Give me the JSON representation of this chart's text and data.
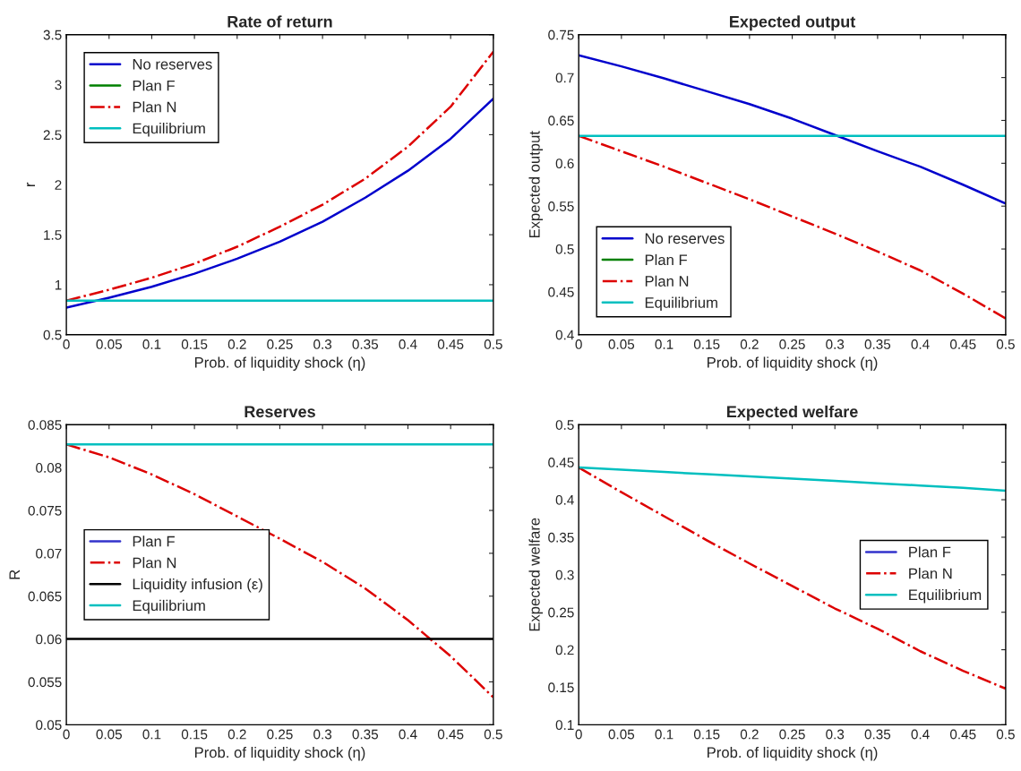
{
  "chart_data": [
    {
      "type": "line",
      "title": "Rate of return",
      "xlabel": "Prob. of liquidity shock (η)",
      "ylabel": "r",
      "x": [
        0,
        0.05,
        0.1,
        0.15,
        0.2,
        0.25,
        0.3,
        0.35,
        0.4,
        0.45,
        0.5
      ],
      "xlim": [
        0,
        0.5
      ],
      "xticks": [
        0,
        0.05,
        0.1,
        0.15,
        0.2,
        0.25,
        0.3,
        0.35,
        0.4,
        0.45,
        0.5
      ],
      "ylim": [
        0.5,
        3.5
      ],
      "yticks": [
        0.5,
        1,
        1.5,
        2,
        2.5,
        3,
        3.5
      ],
      "grid": false,
      "legend": "top left",
      "marker": "none",
      "series": [
        {
          "name": "No reserves",
          "color": "#0000cc",
          "line_style": "solid",
          "values": [
            0.77,
            0.87,
            0.98,
            1.11,
            1.26,
            1.43,
            1.63,
            1.87,
            2.14,
            2.46,
            2.86
          ]
        },
        {
          "name": "Plan F",
          "color": "#008000",
          "line_style": "solid",
          "values": [
            null,
            null,
            null,
            null,
            null,
            null,
            null,
            null,
            null,
            null,
            null
          ]
        },
        {
          "name": "Plan N",
          "color": "#dd0000",
          "line_style": "dashdot",
          "values": [
            0.84,
            0.95,
            1.07,
            1.21,
            1.38,
            1.58,
            1.8,
            2.06,
            2.38,
            2.78,
            3.33
          ]
        },
        {
          "name": "Equilibrium",
          "color": "#00bfbf",
          "line_style": "solid",
          "values": [
            0.84,
            0.84,
            0.84,
            0.84,
            0.84,
            0.84,
            0.84,
            0.84,
            0.84,
            0.84,
            0.84
          ]
        }
      ]
    },
    {
      "type": "line",
      "title": "Expected output",
      "xlabel": "Prob. of liquidity shock (η)",
      "ylabel": "Expected output",
      "x": [
        0,
        0.05,
        0.1,
        0.15,
        0.2,
        0.25,
        0.3,
        0.35,
        0.4,
        0.45,
        0.5
      ],
      "xlim": [
        0,
        0.5
      ],
      "xticks": [
        0,
        0.05,
        0.1,
        0.15,
        0.2,
        0.25,
        0.3,
        0.35,
        0.4,
        0.45,
        0.5
      ],
      "ylim": [
        0.4,
        0.75
      ],
      "yticks": [
        0.4,
        0.45,
        0.5,
        0.55,
        0.6,
        0.65,
        0.7,
        0.75
      ],
      "grid": false,
      "legend": "lower left",
      "marker": "none",
      "series": [
        {
          "name": "No reserves",
          "color": "#0000cc",
          "line_style": "solid",
          "values": [
            0.726,
            0.713,
            0.699,
            0.684,
            0.669,
            0.652,
            0.633,
            0.614,
            0.596,
            0.575,
            0.553
          ]
        },
        {
          "name": "Plan F",
          "color": "#008000",
          "line_style": "solid",
          "values": [
            null,
            null,
            null,
            null,
            null,
            null,
            null,
            null,
            null,
            null,
            null
          ]
        },
        {
          "name": "Plan N",
          "color": "#dd0000",
          "line_style": "dashdot",
          "values": [
            0.632,
            0.614,
            0.596,
            0.577,
            0.558,
            0.538,
            0.518,
            0.497,
            0.475,
            0.448,
            0.419
          ]
        },
        {
          "name": "Equilibrium",
          "color": "#00bfbf",
          "line_style": "solid",
          "values": [
            0.632,
            0.632,
            0.632,
            0.632,
            0.632,
            0.632,
            0.632,
            0.632,
            0.632,
            0.632,
            0.632
          ]
        }
      ]
    },
    {
      "type": "line",
      "title": "Reserves",
      "xlabel": "Prob. of liquidity shock (η)",
      "ylabel": "R",
      "x": [
        0,
        0.05,
        0.1,
        0.15,
        0.2,
        0.25,
        0.3,
        0.35,
        0.4,
        0.45,
        0.5
      ],
      "xlim": [
        0,
        0.5
      ],
      "xticks": [
        0,
        0.05,
        0.1,
        0.15,
        0.2,
        0.25,
        0.3,
        0.35,
        0.4,
        0.45,
        0.5
      ],
      "ylim": [
        0.05,
        0.085
      ],
      "yticks": [
        0.05,
        0.055,
        0.06,
        0.065,
        0.07,
        0.075,
        0.08,
        0.085
      ],
      "grid": false,
      "legend": "center left",
      "marker": "none",
      "series": [
        {
          "name": "Plan F",
          "color": "#3333cc",
          "line_style": "solid",
          "values": [
            null,
            null,
            null,
            null,
            null,
            null,
            null,
            null,
            null,
            null,
            null
          ]
        },
        {
          "name": "Plan N",
          "color": "#dd0000",
          "line_style": "dashdot",
          "values": [
            0.0827,
            0.0812,
            0.0792,
            0.0769,
            0.0743,
            0.0717,
            0.069,
            0.0659,
            0.0622,
            0.058,
            0.0532
          ]
        },
        {
          "name": "Liquidity infusion (ε)",
          "color": "#000000",
          "line_style": "solid",
          "values": [
            0.06,
            0.06,
            0.06,
            0.06,
            0.06,
            0.06,
            0.06,
            0.06,
            0.06,
            0.06,
            0.06
          ]
        },
        {
          "name": "Equilibrium",
          "color": "#00bfbf",
          "line_style": "solid",
          "values": [
            0.0827,
            0.0827,
            0.0827,
            0.0827,
            0.0827,
            0.0827,
            0.0827,
            0.0827,
            0.0827,
            0.0827,
            0.0827
          ]
        }
      ]
    },
    {
      "type": "line",
      "title": "Expected welfare",
      "xlabel": "Prob. of liquidity shock (η)",
      "ylabel": "Expected welfare",
      "x": [
        0,
        0.05,
        0.1,
        0.15,
        0.2,
        0.25,
        0.3,
        0.35,
        0.4,
        0.45,
        0.5
      ],
      "xlim": [
        0,
        0.5
      ],
      "xticks": [
        0,
        0.05,
        0.1,
        0.15,
        0.2,
        0.25,
        0.3,
        0.35,
        0.4,
        0.45,
        0.5
      ],
      "ylim": [
        0.1,
        0.5
      ],
      "yticks": [
        0.1,
        0.15,
        0.2,
        0.25,
        0.3,
        0.35,
        0.4,
        0.45,
        0.5
      ],
      "grid": false,
      "legend": "center right",
      "marker": "none",
      "series": [
        {
          "name": "Plan F",
          "color": "#3333cc",
          "line_style": "solid",
          "values": [
            null,
            null,
            null,
            null,
            null,
            null,
            null,
            null,
            null,
            null,
            null
          ]
        },
        {
          "name": "Plan N",
          "color": "#dd0000",
          "line_style": "dashdot",
          "values": [
            0.443,
            0.41,
            0.378,
            0.346,
            0.315,
            0.285,
            0.255,
            0.228,
            0.198,
            0.172,
            0.148
          ]
        },
        {
          "name": "Equilibrium",
          "color": "#00bfbf",
          "line_style": "solid",
          "values": [
            0.443,
            0.44,
            0.437,
            0.434,
            0.431,
            0.428,
            0.425,
            0.422,
            0.419,
            0.416,
            0.412
          ]
        }
      ]
    }
  ]
}
